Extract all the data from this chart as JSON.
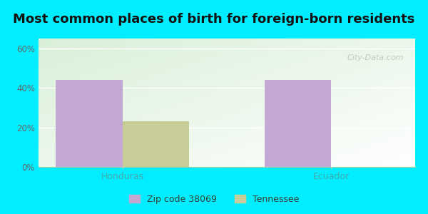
{
  "title": "Most common places of birth for foreign-born residents",
  "categories": [
    "Honduras",
    "Ecuador"
  ],
  "zip_values": [
    44.0,
    44.0
  ],
  "state_values": [
    23.0,
    0.0
  ],
  "zip_color": "#c4a8d4",
  "state_color": "#c8cc96",
  "zip_label": "Zip code 38069",
  "state_label": "Tennessee",
  "ylim": [
    0,
    65
  ],
  "yticks": [
    0,
    20,
    40,
    60
  ],
  "ytick_labels": [
    "0%",
    "20%",
    "40%",
    "60%"
  ],
  "xlabel_color": "#44aaaa",
  "bg_outer": "#00eeff",
  "title_fontsize": 13,
  "bar_width": 0.32,
  "watermark": "City-Data.com",
  "legend_text_color": "#334433"
}
